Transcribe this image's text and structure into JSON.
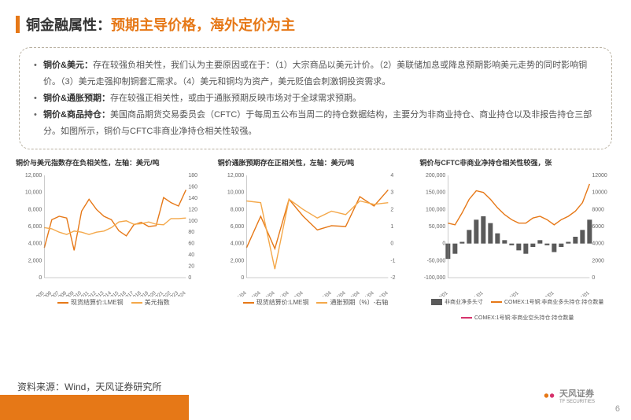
{
  "header": {
    "title_dark": "铜金融属性：",
    "title_orange": "预期主导价格，海外定价为主"
  },
  "accent": "#e67817",
  "bullets": [
    {
      "b": "铜价&美元：",
      "t": "存在较强负相关性，我们认为主要原因或在于：（1）大宗商品以美元计价。（2）美联储加息或降息预期影响美元走势的同时影响铜价。（3）美元走强抑制铜套汇需求。（4）美元和铜均为资产，美元贬值会刺激铜投资需求。"
    },
    {
      "b": "铜价&通胀预期：",
      "t": "存在较强正相关性，或由于通胀预期反映市场对于全球需求预期。"
    },
    {
      "b": "铜价&商品持仓：",
      "t": "美国商品期货交易委员会（CFTC）于每周五公布当周二的持仓数据结构，主要分为非商业持仓、商业持仓以及非报告持仓三部分。如图所示，铜价与CFTC非商业净持仓相关性较强。"
    }
  ],
  "source": "资料来源：Wind，天风证券研究所",
  "logo": {
    "name": "天风证券",
    "sub": "TF SECURITIES"
  },
  "page": "6",
  "chart1": {
    "title": "铜价与美元指数存在负相关性，左轴：美元/吨",
    "x": [
      "2005",
      "2006",
      "2007",
      "2008",
      "2009",
      "2010",
      "2011",
      "2012",
      "2013",
      "2014",
      "2015",
      "2016",
      "2017",
      "2018",
      "2019",
      "2020",
      "2021",
      "2022",
      "2023",
      "2024"
    ],
    "yL": {
      "min": 0,
      "max": 12000,
      "ticks": [
        0,
        2000,
        4000,
        6000,
        8000,
        10000,
        12000
      ]
    },
    "yR": {
      "min": 0,
      "max": 180,
      "ticks": [
        0,
        20,
        40,
        60,
        80,
        100,
        120,
        140,
        160,
        180
      ]
    },
    "s1": {
      "label": "现货结算价:LME铜",
      "color": "#e67817",
      "data": [
        3500,
        6800,
        7200,
        7000,
        3200,
        7800,
        9200,
        8000,
        7200,
        6800,
        5500,
        4900,
        6200,
        6500,
        6000,
        6100,
        9400,
        8800,
        8400,
        10300
      ]
    },
    "s2": {
      "label": "美元指数",
      "color": "#f4a84a",
      "data": [
        88,
        86,
        80,
        76,
        82,
        80,
        76,
        80,
        82,
        88,
        98,
        100,
        94,
        95,
        98,
        94,
        93,
        104,
        104,
        105
      ]
    }
  },
  "chart2": {
    "title": "铜价通胀预期存在正相关性，左轴：美元/吨",
    "x": [
      "2005/04",
      "2007/04",
      "2009/04",
      "2011/04",
      "2013/04",
      "2015/04",
      "2017/04",
      "2019/04",
      "2021/04",
      "2023/04"
    ],
    "yL": {
      "min": 0,
      "max": 12000,
      "ticks": [
        0,
        2000,
        4000,
        6000,
        8000,
        10000,
        12000
      ]
    },
    "yR": {
      "min": -2.0,
      "max": 4.0,
      "ticks": [
        -2.0,
        -1.0,
        0.0,
        1.0,
        2.0,
        3.0,
        4.0
      ]
    },
    "s1": {
      "label": "现货结算价:LME铜",
      "color": "#e67817",
      "data": [
        3500,
        7200,
        3400,
        9200,
        7200,
        5600,
        6100,
        6000,
        9500,
        8400,
        10300
      ]
    },
    "s2": {
      "label": "通胀预期（%）-右轴",
      "color": "#f4a84a",
      "data": [
        2.5,
        2.4,
        -1.5,
        2.6,
        2.0,
        1.5,
        1.9,
        1.7,
        2.5,
        2.3,
        2.4
      ]
    }
  },
  "chart3": {
    "title": "铜价与CFTC非商业净持仓相关性较强，张",
    "x": [
      "2020/01",
      "2021/01",
      "2022/01",
      "2023/01",
      "2024/01"
    ],
    "yL": {
      "min": -100000,
      "max": 200000,
      "ticks": [
        -100000,
        -50000,
        0,
        50000,
        100000,
        150000,
        200000
      ]
    },
    "yR": {
      "min": 0,
      "max": 12000,
      "ticks": [
        0,
        2000,
        4000,
        6000,
        8000,
        10000,
        12000
      ]
    },
    "bars": {
      "label": "非商业净多头寸",
      "color": "#5a5a5a",
      "data": [
        -45000,
        -30000,
        5000,
        40000,
        70000,
        80000,
        60000,
        30000,
        10000,
        -5000,
        -20000,
        -30000,
        -10000,
        10000,
        -5000,
        -25000,
        -10000,
        5000,
        20000,
        40000,
        70000
      ]
    },
    "s1": {
      "label": "COMEX:1号铜:非商业多头持仓:持仓数量",
      "color": "#e67817",
      "data": [
        60000,
        55000,
        90000,
        130000,
        155000,
        150000,
        130000,
        105000,
        85000,
        70000,
        60000,
        60000,
        75000,
        80000,
        70000,
        55000,
        70000,
        80000,
        95000,
        120000,
        175000
      ]
    },
    "s2": {
      "label": "COMEX:1号铜:非商业空头持仓:持仓数量",
      "color": "#d6336c",
      "data": [
        105000,
        85000,
        85000,
        90000,
        85000,
        70000,
        70000,
        75000,
        75000,
        75000,
        80000,
        90000,
        85000,
        70000,
        75000,
        80000,
        80000,
        75000,
        75000,
        80000,
        105000
      ]
    }
  }
}
